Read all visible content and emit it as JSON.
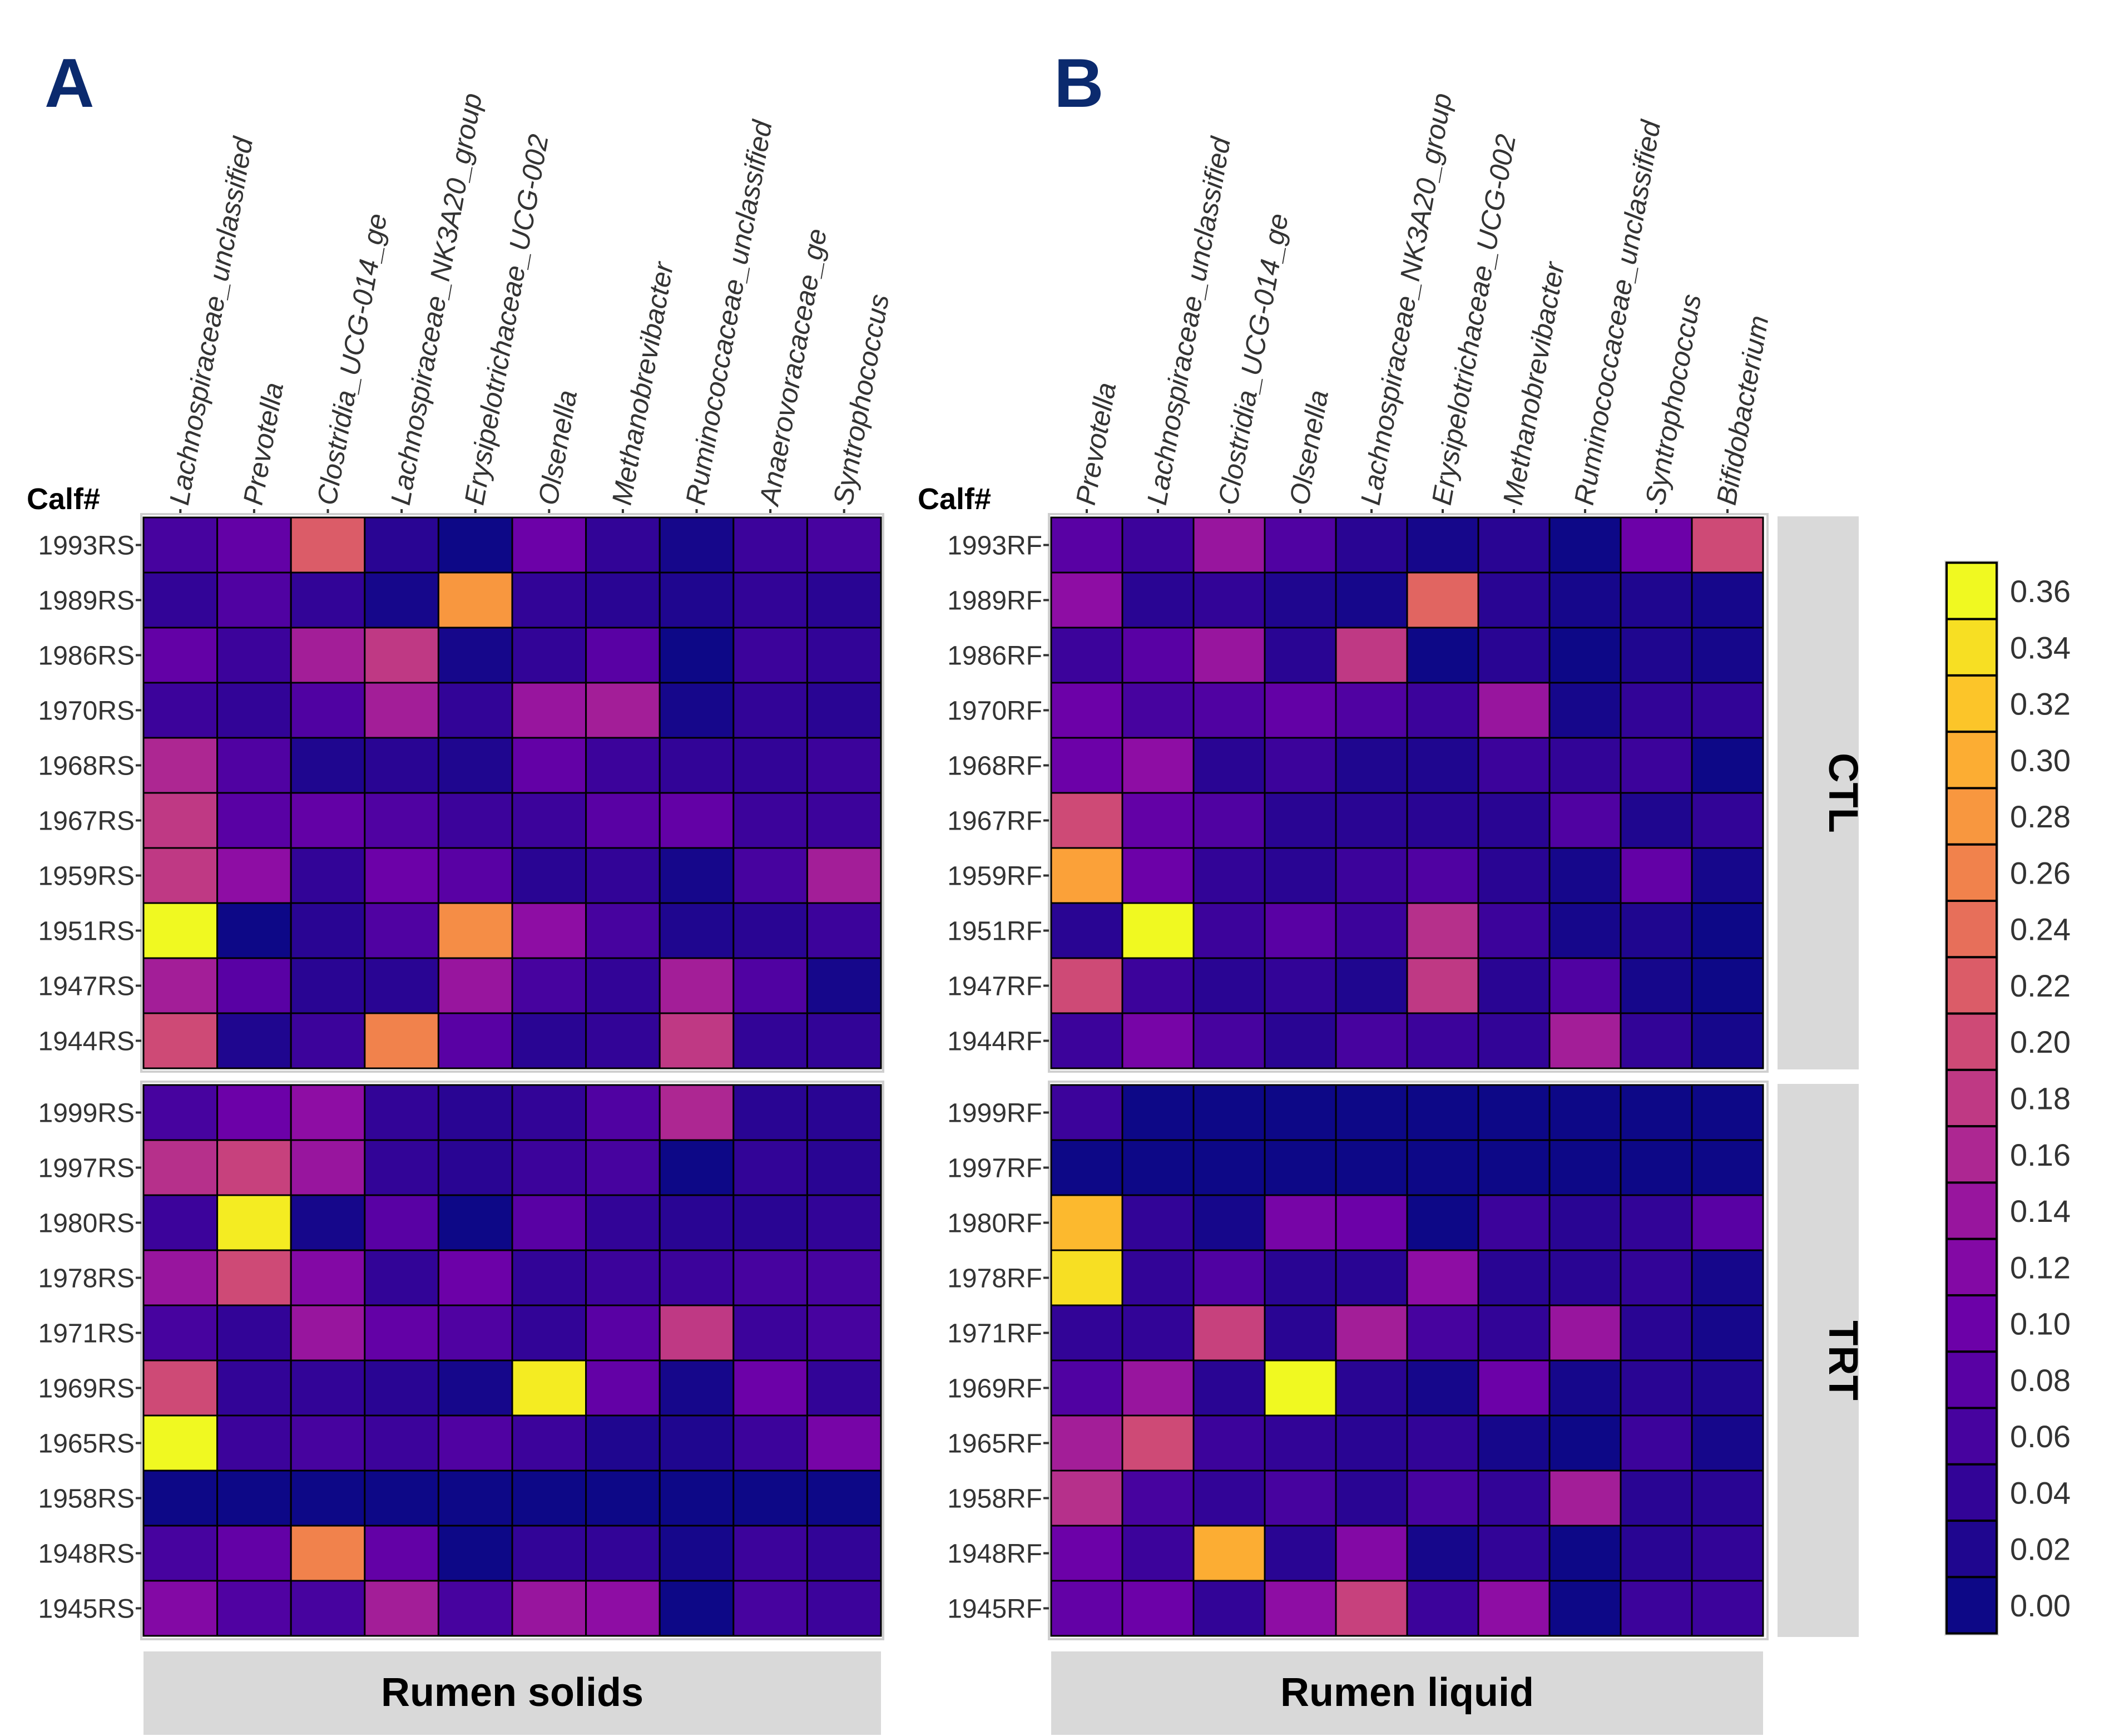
{
  "chart_data": [
    {
      "type": "heatmap",
      "panel_letter": "A",
      "title": "Rumen solids",
      "row_axis_label": "Calf#",
      "columns": [
        "Lachnospiraceae_unclassified",
        "Prevotella",
        "Clostridia_UCG-014_ge",
        "Lachnospiraceae_NK3A20_group",
        "Erysipelotrichaceae_UCG-002",
        "Olsenella",
        "Methanobrevibacter",
        "Ruminococcaceae_unclassified",
        "Anaerovoracaceae_ge",
        "Syntrophococcus"
      ],
      "groups": [
        {
          "name": "CTL",
          "rows": [
            "1993RS",
            "1989RS",
            "1986RS",
            "1970RS",
            "1968RS",
            "1967RS",
            "1959RS",
            "1951RS",
            "1947RS",
            "1944RS"
          ],
          "values": [
            [
              0.06,
              0.09,
              0.22,
              0.03,
              0.0,
              0.1,
              0.04,
              0.01,
              0.05,
              0.06
            ],
            [
              0.04,
              0.07,
              0.04,
              0.01,
              0.28,
              0.04,
              0.03,
              0.02,
              0.04,
              0.03
            ],
            [
              0.09,
              0.05,
              0.15,
              0.18,
              0.01,
              0.04,
              0.08,
              0.0,
              0.05,
              0.04
            ],
            [
              0.05,
              0.04,
              0.07,
              0.15,
              0.04,
              0.14,
              0.15,
              0.01,
              0.04,
              0.03
            ],
            [
              0.16,
              0.07,
              0.02,
              0.03,
              0.02,
              0.09,
              0.05,
              0.04,
              0.04,
              0.05
            ],
            [
              0.18,
              0.08,
              0.09,
              0.07,
              0.05,
              0.05,
              0.08,
              0.09,
              0.05,
              0.05
            ],
            [
              0.18,
              0.13,
              0.04,
              0.1,
              0.08,
              0.03,
              0.04,
              0.01,
              0.06,
              0.15
            ],
            [
              0.36,
              0.0,
              0.03,
              0.07,
              0.27,
              0.13,
              0.06,
              0.02,
              0.03,
              0.05
            ],
            [
              0.15,
              0.08,
              0.03,
              0.03,
              0.14,
              0.06,
              0.04,
              0.15,
              0.07,
              0.01
            ],
            [
              0.2,
              0.02,
              0.05,
              0.26,
              0.08,
              0.03,
              0.04,
              0.18,
              0.04,
              0.04
            ]
          ]
        },
        {
          "name": "TRT",
          "rows": [
            "1999RS",
            "1997RS",
            "1980RS",
            "1978RS",
            "1971RS",
            "1969RS",
            "1965RS",
            "1958RS",
            "1948RS",
            "1945RS"
          ],
          "values": [
            [
              0.06,
              0.1,
              0.13,
              0.04,
              0.03,
              0.04,
              0.07,
              0.16,
              0.03,
              0.03
            ],
            [
              0.17,
              0.19,
              0.14,
              0.04,
              0.03,
              0.05,
              0.06,
              0.0,
              0.04,
              0.03
            ],
            [
              0.05,
              0.35,
              0.01,
              0.08,
              0.0,
              0.08,
              0.04,
              0.03,
              0.03,
              0.04
            ],
            [
              0.14,
              0.2,
              0.12,
              0.04,
              0.1,
              0.04,
              0.05,
              0.05,
              0.06,
              0.06
            ],
            [
              0.06,
              0.04,
              0.14,
              0.09,
              0.07,
              0.04,
              0.08,
              0.18,
              0.05,
              0.06
            ],
            [
              0.2,
              0.04,
              0.04,
              0.03,
              0.01,
              0.35,
              0.09,
              0.01,
              0.1,
              0.04
            ],
            [
              0.36,
              0.05,
              0.06,
              0.05,
              0.07,
              0.05,
              0.02,
              0.02,
              0.05,
              0.11
            ],
            [
              0.0,
              0.0,
              0.0,
              0.0,
              0.0,
              0.0,
              0.0,
              0.0,
              0.0,
              0.0
            ],
            [
              0.06,
              0.09,
              0.26,
              0.09,
              0.0,
              0.04,
              0.04,
              0.01,
              0.05,
              0.04
            ],
            [
              0.12,
              0.07,
              0.06,
              0.15,
              0.06,
              0.14,
              0.13,
              0.0,
              0.06,
              0.05
            ]
          ]
        }
      ]
    },
    {
      "type": "heatmap",
      "panel_letter": "B",
      "title": "Rumen liquid",
      "row_axis_label": "Calf#",
      "columns": [
        "Prevotella",
        "Lachnospiraceae_unclassified",
        "Clostridia_UCG-014_ge",
        "Olsenella",
        "Lachnospiraceae_NK3A20_group",
        "Erysipelotrichaceae_UCG-002",
        "Methanobrevibacter",
        "Ruminococcaceae_unclassified",
        "Syntrophococcus",
        "Bifidobacterium"
      ],
      "groups": [
        {
          "name": "CTL",
          "rows": [
            "1993RF",
            "1989RF",
            "1986RF",
            "1970RF",
            "1968RF",
            "1967RF",
            "1959RF",
            "1951RF",
            "1947RF",
            "1944RF"
          ],
          "values": [
            [
              0.08,
              0.05,
              0.14,
              0.07,
              0.03,
              0.01,
              0.03,
              0.0,
              0.1,
              0.2
            ],
            [
              0.13,
              0.03,
              0.04,
              0.02,
              0.01,
              0.23,
              0.03,
              0.01,
              0.02,
              0.01
            ],
            [
              0.05,
              0.08,
              0.14,
              0.03,
              0.18,
              0.0,
              0.03,
              0.0,
              0.02,
              0.01
            ],
            [
              0.1,
              0.06,
              0.07,
              0.09,
              0.07,
              0.05,
              0.14,
              0.01,
              0.04,
              0.04
            ],
            [
              0.1,
              0.13,
              0.03,
              0.05,
              0.02,
              0.02,
              0.05,
              0.04,
              0.05,
              0.0
            ],
            [
              0.2,
              0.09,
              0.07,
              0.03,
              0.03,
              0.03,
              0.03,
              0.07,
              0.02,
              0.04
            ],
            [
              0.29,
              0.1,
              0.04,
              0.03,
              0.05,
              0.07,
              0.03,
              0.01,
              0.09,
              0.01
            ],
            [
              0.03,
              0.36,
              0.05,
              0.08,
              0.05,
              0.17,
              0.05,
              0.01,
              0.02,
              0.0
            ],
            [
              0.2,
              0.05,
              0.03,
              0.04,
              0.02,
              0.18,
              0.03,
              0.07,
              0.01,
              0.0
            ],
            [
              0.05,
              0.11,
              0.06,
              0.03,
              0.06,
              0.05,
              0.04,
              0.15,
              0.04,
              0.01
            ]
          ]
        },
        {
          "name": "TRT",
          "rows": [
            "1999RF",
            "1997RF",
            "1980RF",
            "1978RF",
            "1971RF",
            "1969RF",
            "1965RF",
            "1958RF",
            "1948RF",
            "1945RF"
          ],
          "values": [
            [
              0.05,
              0.0,
              0.0,
              0.0,
              0.0,
              0.0,
              0.0,
              0.0,
              0.0,
              0.0
            ],
            [
              0.0,
              0.0,
              0.0,
              0.0,
              0.0,
              0.0,
              0.0,
              0.0,
              0.0,
              0.0
            ],
            [
              0.31,
              0.04,
              0.01,
              0.11,
              0.1,
              0.0,
              0.05,
              0.03,
              0.04,
              0.08
            ],
            [
              0.34,
              0.04,
              0.07,
              0.03,
              0.03,
              0.13,
              0.03,
              0.03,
              0.04,
              0.01
            ],
            [
              0.04,
              0.04,
              0.19,
              0.03,
              0.15,
              0.06,
              0.04,
              0.14,
              0.03,
              0.01
            ],
            [
              0.07,
              0.14,
              0.03,
              0.36,
              0.03,
              0.01,
              0.1,
              0.01,
              0.03,
              0.02
            ],
            [
              0.15,
              0.2,
              0.05,
              0.04,
              0.03,
              0.04,
              0.01,
              0.0,
              0.05,
              0.01
            ],
            [
              0.17,
              0.06,
              0.04,
              0.06,
              0.03,
              0.06,
              0.04,
              0.15,
              0.03,
              0.03
            ],
            [
              0.1,
              0.05,
              0.3,
              0.03,
              0.12,
              0.01,
              0.04,
              0.0,
              0.03,
              0.04
            ],
            [
              0.09,
              0.1,
              0.04,
              0.13,
              0.19,
              0.05,
              0.13,
              0.0,
              0.05,
              0.05
            ]
          ]
        }
      ]
    }
  ],
  "legend": {
    "ticks": [
      "0.36",
      "0.34",
      "0.32",
      "0.30",
      "0.28",
      "0.26",
      "0.24",
      "0.22",
      "0.20",
      "0.18",
      "0.16",
      "0.14",
      "0.12",
      "0.10",
      "0.08",
      "0.06",
      "0.04",
      "0.02",
      "0.00"
    ],
    "range": [
      0,
      0.36
    ]
  },
  "palette": [
    "#0d0887",
    "#2b0594",
    "#4c02a1",
    "#6a00a8",
    "#8f0da4",
    "#b12a90",
    "#cc4778",
    "#e16462",
    "#f2844b",
    "#fca636",
    "#fcce25",
    "#f0f921"
  ],
  "colors": {
    "panel_letter": "#0b2a6e",
    "strip_background": "#d9d9d9",
    "cell_border": "#000000",
    "label_text": "#333333"
  }
}
